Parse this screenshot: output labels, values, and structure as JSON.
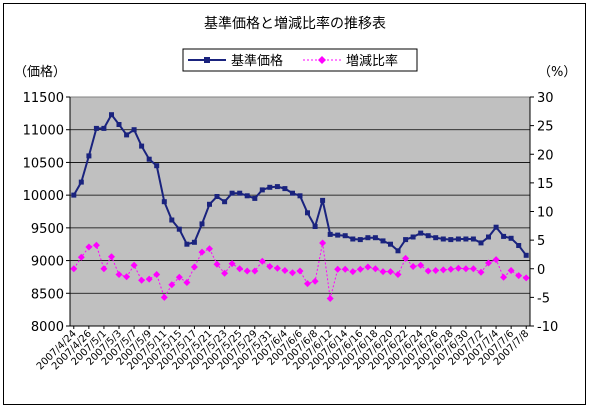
{
  "chart_data": {
    "type": "line",
    "title": "基準価格と増減比率の推移表",
    "y_left_label": "（価格）",
    "y_right_label": "（%）",
    "y_left_lim": [
      8000,
      11500
    ],
    "y_left_ticks": [
      8000,
      8500,
      9000,
      9500,
      10000,
      10500,
      11000,
      11500
    ],
    "y_right_lim": [
      -10,
      30
    ],
    "y_right_ticks": [
      -10,
      -5,
      0,
      5,
      10,
      15,
      20,
      25,
      30
    ],
    "grid": "horizontal",
    "legend_position": "top",
    "x_tick_labels": [
      "2007/4/24",
      "2007/4/26",
      "2007/5/1",
      "2007/5/3",
      "2007/5/7",
      "2007/5/9",
      "2007/5/11",
      "2007/5/15",
      "2007/5/17",
      "2007/5/21",
      "2007/5/23",
      "2007/5/25",
      "2007/5/29",
      "2007/5/31",
      "2007/6/4",
      "2007/6/6",
      "2007/6/8",
      "2007/6/12",
      "2007/6/14",
      "2007/6/16",
      "2007/6/18",
      "2007/6/20",
      "2007/6/22",
      "2007/6/24",
      "2007/6/26",
      "2007/6/28",
      "2007/6/30",
      "2007/7/2",
      "2007/7/4",
      "2007/7/6",
      "2007/7/8"
    ],
    "series": [
      {
        "name": "基準価格",
        "axis": "left",
        "color": "#1a237e",
        "values": [
          10000,
          10200,
          10600,
          11020,
          11020,
          11230,
          11080,
          10920,
          11000,
          10750,
          10550,
          10450,
          9900,
          9620,
          9480,
          9250,
          9280,
          9560,
          9860,
          9980,
          9900,
          10030,
          10030,
          9990,
          9950,
          10080,
          10120,
          10130,
          10100,
          10030,
          9990,
          9730,
          9520,
          9920,
          9400,
          9390,
          9380,
          9330,
          9320,
          9350,
          9350,
          9300,
          9250,
          9150,
          9320,
          9360,
          9420,
          9380,
          9350,
          9330,
          9320,
          9330,
          9330,
          9330,
          9270,
          9360,
          9510,
          9370,
          9340,
          9230,
          9080
        ]
      },
      {
        "name": "増減比率",
        "axis": "right",
        "color": "#ff00ff",
        "values": [
          0,
          2,
          3.8,
          4.1,
          0,
          2.1,
          -1,
          -1.4,
          0.6,
          -2,
          -1.8,
          -1,
          -5,
          -2.8,
          -1.5,
          -2.4,
          0.3,
          2.9,
          3.5,
          0.8,
          -0.8,
          0.9,
          0,
          -0.4,
          -0.4,
          1.3,
          0.4,
          0.1,
          -0.3,
          -0.7,
          -0.4,
          -2.6,
          -2.2,
          4.5,
          -5.2,
          -0.1,
          -0.1,
          -0.5,
          -0.1,
          0.3,
          0,
          -0.5,
          -0.5,
          -1,
          1.8,
          0.4,
          0.6,
          -0.4,
          -0.3,
          -0.2,
          -0.1,
          0.1,
          0,
          0,
          -0.6,
          1,
          1.6,
          -1.5,
          -0.3,
          -1.2,
          -1.6
        ]
      }
    ]
  }
}
